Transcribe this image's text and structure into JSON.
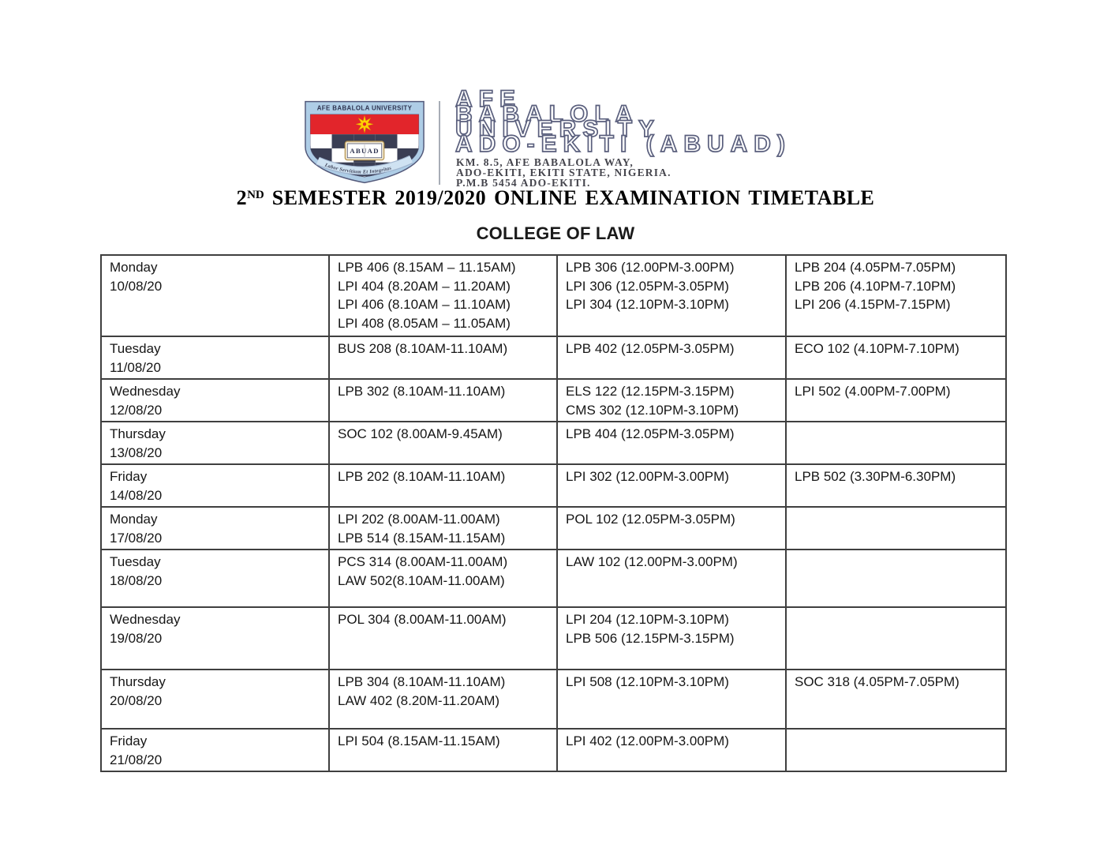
{
  "logo": {
    "crest": {
      "top_band_text": "AFE BABALOLA UNIVERSITY",
      "book_label": "ABUAD",
      "motto_text": "Labor Servitium Et Integritas",
      "colors": {
        "border_blue": "#aecde6",
        "navy": "#3a3e54",
        "red": "#e2252b",
        "star_yellow": "#ffd103"
      }
    },
    "wordmark_lines": [
      "AFE",
      "BABALOLA",
      "UNIVERSITY",
      "ADO-EKITI (ABUAD)"
    ],
    "address_lines": [
      "KM. 8.5, AFE BABALOLA WAY,",
      "ADO-EKITI, EKITI STATE, NIGERIA.",
      "P.M.B 5454 ADO-EKITI."
    ]
  },
  "header": {
    "title_prefix": "2",
    "title_sup": "ND",
    "title_rest": " SEMESTER 2019/2020 ONLINE EXAMINATION TIMETABLE",
    "subtitle": "COLLEGE OF LAW"
  },
  "timetable": {
    "rows": [
      {
        "day": "Monday",
        "date": "10/08/20",
        "morning": [
          "LPB 406 (8.15AM – 11.15AM)",
          "LPI 404 (8.20AM – 11.20AM)",
          "LPI 406 (8.10AM – 11.10AM)",
          "LPI 408 (8.05AM – 11.05AM)"
        ],
        "midday": [
          "LPB 306 (12.00PM-3.00PM)",
          "LPI 306 (12.05PM-3.05PM)",
          "LPI 304 (12.10PM-3.10PM)"
        ],
        "evening": [
          "LPB 204 (4.05PM-7.05PM)",
          "LPB 206 (4.10PM-7.10PM)",
          "LPI 206 (4.15PM-7.15PM)"
        ]
      },
      {
        "day": "Tuesday",
        "date": "11/08/20",
        "morning": [
          "BUS 208 (8.10AM-11.10AM)"
        ],
        "midday": [
          "LPB 402 (12.05PM-3.05PM)"
        ],
        "evening": [
          "ECO 102 (4.10PM-7.10PM)"
        ]
      },
      {
        "day": "Wednesday",
        "date": "12/08/20",
        "morning": [
          "LPB 302 (8.10AM-11.10AM)"
        ],
        "midday": [
          "ELS 122 (12.15PM-3.15PM)",
          "CMS 302 (12.10PM-3.10PM)"
        ],
        "evening": [
          "LPI 502 (4.00PM-7.00PM)"
        ]
      },
      {
        "day": "Thursday",
        "date": "13/08/20",
        "morning": [
          "SOC 102 (8.00AM-9.45AM)"
        ],
        "midday": [
          "LPB 404 (12.05PM-3.05PM)"
        ],
        "evening": []
      },
      {
        "day": "Friday",
        "date": "14/08/20",
        "morning": [
          "LPB 202 (8.10AM-11.10AM)"
        ],
        "midday": [
          "LPI 302 (12.00PM-3.00PM)"
        ],
        "evening": [
          "LPB 502 (3.30PM-6.30PM)"
        ]
      },
      {
        "day": "Monday",
        "date": "17/08/20",
        "morning": [
          "LPI 202 (8.00AM-11.00AM)",
          "LPB 514 (8.15AM-11.15AM)"
        ],
        "midday": [
          "POL 102 (12.05PM-3.05PM)"
        ],
        "evening": []
      },
      {
        "day": "Tuesday",
        "date": "18/08/20",
        "morning": [
          "PCS 314 (8.00AM-11.00AM)",
          "LAW 502(8.10AM-11.00AM)"
        ],
        "midday": [
          "LAW 102 (12.00PM-3.00PM)"
        ],
        "evening": []
      },
      {
        "day": "Wednesday",
        "date": "19/08/20",
        "morning": [
          "POL 304 (8.00AM-11.00AM)"
        ],
        "midday": [
          "LPI 204 (12.10PM-3.10PM)",
          "LPB 506 (12.15PM-3.15PM)"
        ],
        "evening": []
      },
      {
        "day": "Thursday",
        "date": "20/08/20",
        "morning": [
          "LPB 304 (8.10AM-11.10AM)",
          "LAW 402 (8.20M-11.20AM)"
        ],
        "midday": [
          "LPI 508 (12.10PM-3.10PM)"
        ],
        "evening": [
          "SOC 318 (4.05PM-7.05PM)"
        ]
      },
      {
        "day": "Friday",
        "date": "21/08/20",
        "morning": [
          "LPI 504 (8.15AM-11.15AM)"
        ],
        "midday": [
          "LPI 402 (12.00PM-3.00PM)"
        ],
        "evening": []
      }
    ]
  }
}
